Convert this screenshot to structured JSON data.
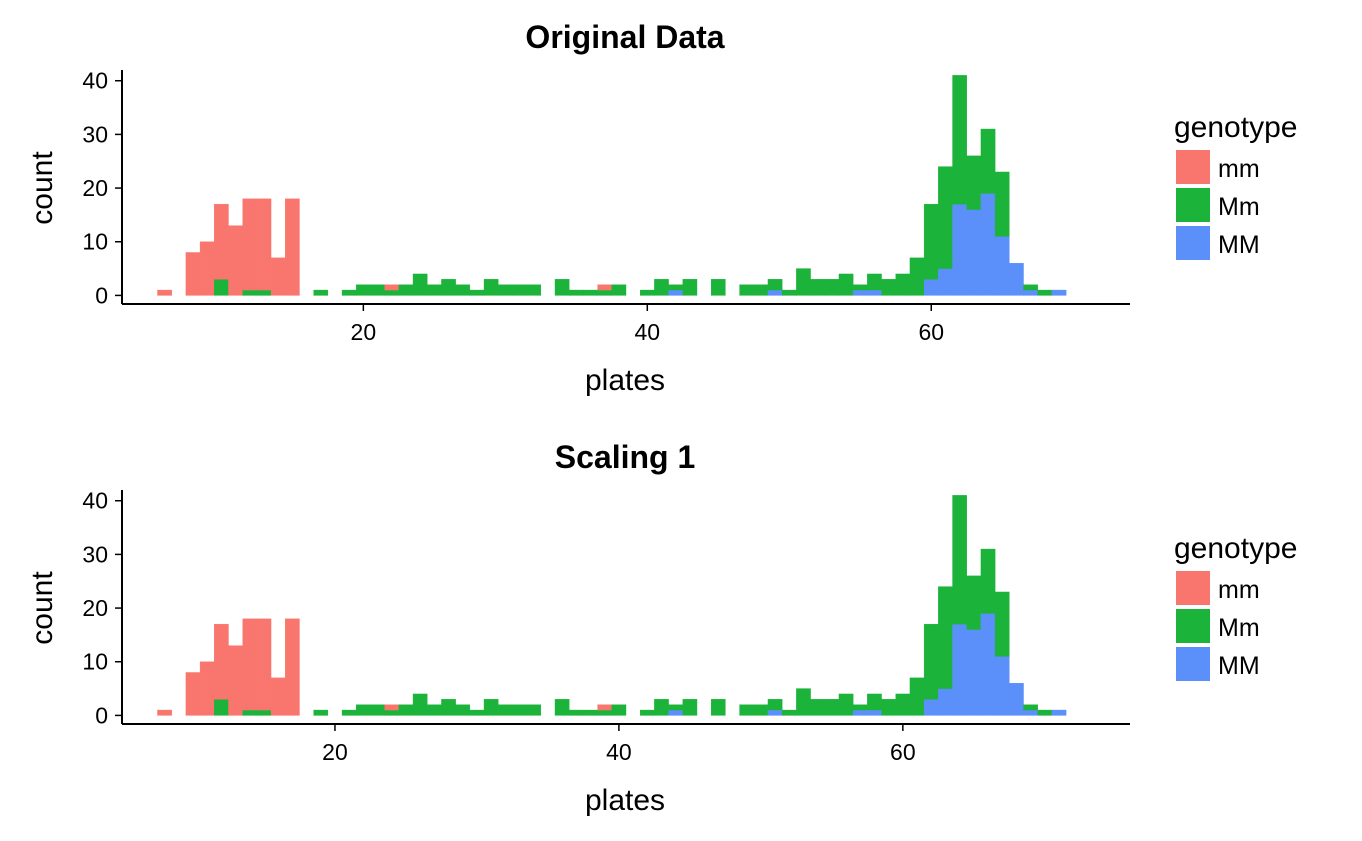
{
  "colors": {
    "mm": "#F8766D",
    "Mm": "#1BB33A",
    "MM": "#5B8FF9"
  },
  "chart_data": [
    {
      "type": "bar",
      "title": "Original Data",
      "xlabel": "plates",
      "ylabel": "count",
      "stacked": true,
      "bin_width": 1,
      "xlim": [
        3,
        74
      ],
      "ylim": [
        -1.6,
        42
      ],
      "xticks": [
        20,
        40,
        60
      ],
      "yticks": [
        0,
        10,
        20,
        30,
        40
      ],
      "legend": {
        "title": "genotype",
        "placement": "right",
        "entries": [
          "mm",
          "Mm",
          "MM"
        ]
      },
      "x": [
        6,
        8,
        9,
        10,
        11,
        12,
        13,
        14,
        15,
        17,
        19,
        20,
        21,
        22,
        23,
        24,
        25,
        26,
        27,
        28,
        29,
        30,
        31,
        32,
        34,
        35,
        36,
        37,
        38,
        40,
        41,
        42,
        43,
        45,
        47,
        48,
        49,
        50,
        51,
        52,
        53,
        54,
        55,
        56,
        57,
        58,
        59,
        60,
        61,
        62,
        63,
        64,
        65,
        66,
        67,
        68,
        69
      ],
      "series": [
        {
          "name": "mm",
          "values": [
            1,
            8,
            10,
            14,
            13,
            17,
            17,
            7,
            18,
            0,
            0,
            0,
            0,
            1,
            0,
            0,
            0,
            0,
            0,
            0,
            0,
            0,
            0,
            0,
            0,
            0,
            0,
            1,
            0,
            0,
            0,
            0,
            0,
            0,
            0,
            0,
            0,
            0,
            0,
            0,
            0,
            0,
            0,
            0,
            0,
            0,
            0,
            0,
            0,
            0,
            0,
            0,
            0,
            0,
            0,
            0,
            0
          ]
        },
        {
          "name": "Mm",
          "values": [
            0,
            0,
            0,
            3,
            0,
            1,
            1,
            0,
            0,
            1,
            1,
            2,
            2,
            1,
            2,
            4,
            2,
            3,
            2,
            1,
            3,
            2,
            2,
            2,
            3,
            1,
            1,
            1,
            2,
            1,
            3,
            1,
            3,
            3,
            2,
            2,
            2,
            1,
            5,
            3,
            3,
            4,
            1,
            3,
            3,
            4,
            7,
            14,
            19,
            24,
            10,
            12,
            12,
            0,
            1,
            1,
            0
          ]
        },
        {
          "name": "MM",
          "values": [
            0,
            0,
            0,
            0,
            0,
            0,
            0,
            0,
            0,
            0,
            0,
            0,
            0,
            0,
            0,
            0,
            0,
            0,
            0,
            0,
            0,
            0,
            0,
            0,
            0,
            0,
            0,
            0,
            0,
            0,
            0,
            1,
            0,
            0,
            0,
            0,
            1,
            0,
            0,
            0,
            0,
            0,
            1,
            1,
            0,
            0,
            0,
            3,
            5,
            17,
            16,
            19,
            11,
            6,
            1,
            0,
            1
          ]
        }
      ]
    },
    {
      "type": "bar",
      "title": "Scaling 1",
      "xlabel": "plates",
      "ylabel": "count",
      "stacked": true,
      "bin_width": 1,
      "xlim": [
        5,
        76
      ],
      "ylim": [
        -1.6,
        42
      ],
      "xticks": [
        20,
        40,
        60
      ],
      "yticks": [
        0,
        10,
        20,
        30,
        40
      ],
      "legend": {
        "title": "genotype",
        "placement": "right",
        "entries": [
          "mm",
          "Mm",
          "MM"
        ]
      },
      "x": [
        8,
        10,
        11,
        12,
        13,
        14,
        15,
        16,
        17,
        19,
        21,
        22,
        23,
        24,
        25,
        26,
        27,
        28,
        29,
        30,
        31,
        32,
        33,
        34,
        36,
        37,
        38,
        39,
        40,
        42,
        43,
        44,
        45,
        47,
        49,
        50,
        51,
        52,
        53,
        54,
        55,
        56,
        57,
        58,
        59,
        60,
        61,
        62,
        63,
        64,
        65,
        66,
        67,
        68,
        69,
        70,
        71
      ],
      "series": [
        {
          "name": "mm",
          "values": [
            1,
            8,
            10,
            14,
            13,
            17,
            17,
            7,
            18,
            0,
            0,
            0,
            0,
            1,
            0,
            0,
            0,
            0,
            0,
            0,
            0,
            0,
            0,
            0,
            0,
            0,
            0,
            1,
            0,
            0,
            0,
            0,
            0,
            0,
            0,
            0,
            0,
            0,
            0,
            0,
            0,
            0,
            0,
            0,
            0,
            0,
            0,
            0,
            0,
            0,
            0,
            0,
            0,
            0,
            0,
            0,
            0
          ]
        },
        {
          "name": "Mm",
          "values": [
            0,
            0,
            0,
            3,
            0,
            1,
            1,
            0,
            0,
            1,
            1,
            2,
            2,
            1,
            2,
            4,
            2,
            3,
            2,
            1,
            3,
            2,
            2,
            2,
            3,
            1,
            1,
            1,
            2,
            1,
            3,
            1,
            3,
            3,
            2,
            2,
            2,
            1,
            5,
            3,
            3,
            4,
            1,
            3,
            3,
            4,
            7,
            14,
            19,
            24,
            10,
            12,
            12,
            0,
            1,
            1,
            0
          ]
        },
        {
          "name": "MM",
          "values": [
            0,
            0,
            0,
            0,
            0,
            0,
            0,
            0,
            0,
            0,
            0,
            0,
            0,
            0,
            0,
            0,
            0,
            0,
            0,
            0,
            0,
            0,
            0,
            0,
            0,
            0,
            0,
            0,
            0,
            0,
            0,
            1,
            0,
            0,
            0,
            0,
            1,
            0,
            0,
            0,
            0,
            0,
            1,
            1,
            0,
            0,
            0,
            3,
            5,
            17,
            16,
            19,
            11,
            6,
            1,
            0,
            1
          ]
        }
      ]
    }
  ]
}
